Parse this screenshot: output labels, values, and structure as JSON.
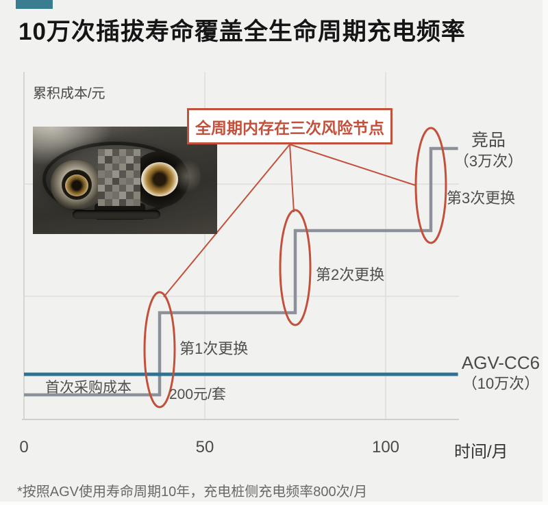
{
  "header": {
    "title": "10万次插拔寿命覆盖全生命周期充电频率",
    "accent_color": "#3a7d90"
  },
  "chart_data": {
    "type": "line",
    "variant": "step-comparison",
    "title": "10万次插拔寿命覆盖全生命周期充电频率",
    "xlabel": "时间/月",
    "ylabel": "累积成本/元",
    "x_ticks": [
      0,
      50,
      100
    ],
    "x_range": [
      0,
      120
    ],
    "y_unit": "元",
    "grid": true,
    "legend_position": "right-of-line-ends",
    "series": [
      {
        "name": "竞品（3万次）",
        "style": "step",
        "color": "#8c9199",
        "points_x": [
          0,
          37.5,
          37.5,
          75,
          75,
          112.5,
          112.5,
          120
        ],
        "points_y": [
          200,
          200,
          400,
          400,
          600,
          600,
          800,
          800
        ]
      },
      {
        "name": "AGV-CC6（10万次）",
        "style": "flat",
        "color": "#2f7190",
        "points_x": [
          0,
          120
        ],
        "points_y": [
          250,
          250
        ]
      }
    ],
    "replacements": [
      {
        "month": 37.5,
        "label": "第1次更换"
      },
      {
        "month": 75,
        "label": "第2次更换"
      },
      {
        "month": 112.5,
        "label": "第3次更换"
      }
    ],
    "annotations": {
      "risk_box": "全周期内存在三次风险节点",
      "first_purchase": "首次采购成本",
      "unit_cost": "200元/套",
      "competitor_line1": "竞品",
      "competitor_line2": "（3万次）",
      "agv_line1": "AGV-CC6",
      "agv_line2": "（10万次）"
    },
    "colors": {
      "risk": "#c2503b",
      "competitor": "#8c9199",
      "agv": "#2f7190",
      "grid": "#dededc",
      "axis": "#cfcfcc"
    }
  },
  "footnote": "*按照AGV使用寿命周期10年，充电桩侧充电频率800次/月"
}
